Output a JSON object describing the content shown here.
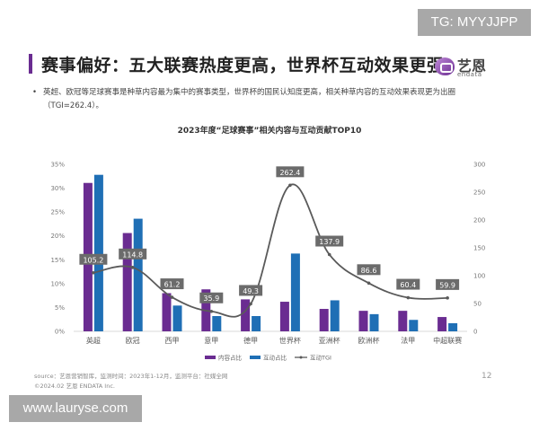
{
  "watermarks": {
    "top_right": "TG: MYYJJPP",
    "bottom_left": "www.lauryse.com"
  },
  "header": {
    "title": "赛事偏好：五大联赛热度更高，世界杯互动效果更强",
    "logo_cn": "艺恩",
    "logo_en": "endata",
    "accent_color": "#6a2c91"
  },
  "bullet": {
    "marker": "•",
    "text": "英超、欧冠等足球赛事是种草内容最为集中的赛事类型，世界杯的国民认知度更高，相关种草内容的互动效果表现更为出圈（TGI=262.4）。"
  },
  "footer": {
    "source": "source：艺恩营销智库，监测时间：2023年1-12月，监测平台：社媒全网",
    "copyright": "©2024.02 艺恩 ENDATA Inc.",
    "page_number": "12"
  },
  "chart_data": {
    "type": "bar",
    "title": "2023年度“足球赛事”相关内容与互动贡献TOP10",
    "categories": [
      "英超",
      "欧冠",
      "西甲",
      "意甲",
      "德甲",
      "世界杯",
      "亚洲杯",
      "欧洲杯",
      "法甲",
      "中超联赛"
    ],
    "series": [
      {
        "name": "内容占比",
        "type": "bar",
        "axis": "left",
        "color": "#6a2c91",
        "values": [
          31.1,
          20.6,
          8.0,
          8.8,
          6.7,
          6.2,
          4.7,
          4.3,
          4.3,
          3.0
        ]
      },
      {
        "name": "互动占比",
        "type": "bar",
        "axis": "left",
        "color": "#1f6fb5",
        "values": [
          32.8,
          23.6,
          5.4,
          3.2,
          3.2,
          16.3,
          6.5,
          3.6,
          2.4,
          1.7
        ]
      },
      {
        "name": "互动TGI",
        "type": "line",
        "axis": "right",
        "color": "#5a5a5a",
        "values": [
          105.2,
          114.8,
          61.2,
          35.9,
          49.3,
          262.4,
          137.9,
          86.6,
          60.4,
          59.9
        ]
      }
    ],
    "y_left": {
      "ticks": [
        "0%",
        "5%",
        "10%",
        "15%",
        "20%",
        "25%",
        "30%",
        "35%"
      ],
      "range": [
        0,
        35
      ]
    },
    "y_right": {
      "ticks": [
        "0",
        "50",
        "100",
        "150",
        "200",
        "250",
        "300"
      ],
      "range": [
        0,
        300
      ]
    },
    "xlabel": "",
    "ylabel": "",
    "legend_position": "bottom-right",
    "grid": false
  }
}
